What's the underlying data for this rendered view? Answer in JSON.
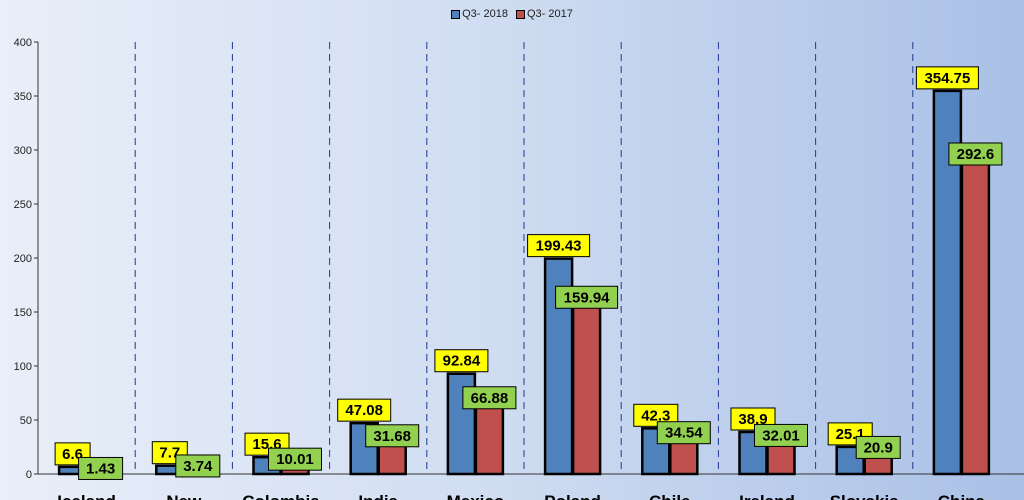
{
  "chart_data": {
    "type": "bar",
    "title": "",
    "xlabel": "",
    "ylabel": "",
    "ylim": [
      0,
      400
    ],
    "yticks": [
      0,
      50,
      100,
      150,
      200,
      250,
      300,
      350,
      400
    ],
    "categories": [
      "Iceland",
      "New",
      "Colombia",
      "India",
      "Mexico",
      "Poland",
      "Chile",
      "Ireland",
      "Slovakia",
      "China"
    ],
    "series": [
      {
        "name": "Q3 - 2018",
        "color": "#4f81bd",
        "label_bg": "#ffff00",
        "values": [
          6.6,
          7.7,
          15.6,
          47.08,
          92.84,
          199.43,
          42.3,
          38.9,
          25.1,
          354.75
        ]
      },
      {
        "name": "Q3 - 2017",
        "color": "#c0504d",
        "label_bg": "#92d050",
        "values": [
          1.43,
          3.74,
          10.01,
          31.68,
          66.88,
          159.94,
          34.54,
          32.01,
          20.9,
          292.6
        ]
      }
    ],
    "data_labels": [
      [
        "6.6",
        "7.7",
        "15.6",
        "47.08",
        "92.84",
        "199.43",
        "42.3",
        "38.9",
        "25.1",
        "354.75"
      ],
      [
        "1.43",
        "3.74",
        "10.01",
        "31.68",
        "66.88",
        "159.94",
        "34.54",
        "32.01",
        "20.9",
        "292.6"
      ]
    ],
    "legend": {
      "position": "top-center",
      "items": [
        "Q3- 2018",
        "Q3- 2017"
      ]
    },
    "grid": {
      "vertical_dashed": true,
      "horizontal": false
    }
  }
}
